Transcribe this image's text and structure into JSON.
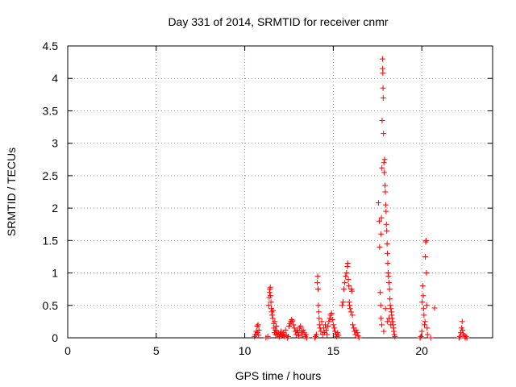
{
  "chart_data": {
    "type": "scatter",
    "title": "Day 331 of 2014, SRMTID for receiver cnmr",
    "xlabel": "GPS time / hours",
    "ylabel": "SRMTID / TECUs",
    "xlim": [
      0,
      24
    ],
    "ylim": [
      0,
      4.5
    ],
    "x_ticks": [
      0,
      5,
      10,
      15,
      20
    ],
    "x_tick_labels": [
      "0",
      "5",
      "10",
      "15",
      "20"
    ],
    "y_ticks": [
      0,
      0.5,
      1,
      1.5,
      2,
      2.5,
      3,
      3.5,
      4,
      4.5
    ],
    "y_tick_labels": [
      "0",
      "0.5",
      "1",
      "1.5",
      "2",
      "2.5",
      "3",
      "3.5",
      "4",
      "4.5"
    ],
    "grid": true,
    "marker": "+",
    "color": "#ff0000",
    "series": [
      {
        "name": "SRMTID",
        "points": [
          [
            10.55,
            0.02
          ],
          [
            10.6,
            0.05
          ],
          [
            10.65,
            0.1
          ],
          [
            10.7,
            0.18
          ],
          [
            10.72,
            0.08
          ],
          [
            10.75,
            0.2
          ],
          [
            10.78,
            0.04
          ],
          [
            10.8,
            0.12
          ],
          [
            11.2,
            0.0
          ],
          [
            11.3,
            0.02
          ],
          [
            11.35,
            0.5
          ],
          [
            11.38,
            0.62
          ],
          [
            11.4,
            0.7
          ],
          [
            11.42,
            0.75
          ],
          [
            11.44,
            0.78
          ],
          [
            11.46,
            0.65
          ],
          [
            11.48,
            0.55
          ],
          [
            11.5,
            0.45
          ],
          [
            11.52,
            0.4
          ],
          [
            11.55,
            0.35
          ],
          [
            11.58,
            0.3
          ],
          [
            11.6,
            0.42
          ],
          [
            11.62,
            0.22
          ],
          [
            11.65,
            0.15
          ],
          [
            11.68,
            0.08
          ],
          [
            11.7,
            0.25
          ],
          [
            11.72,
            0.12
          ],
          [
            11.75,
            0.05
          ],
          [
            11.78,
            0.18
          ],
          [
            11.8,
            0.1
          ],
          [
            11.85,
            0.04
          ],
          [
            11.9,
            0.08
          ],
          [
            11.95,
            0.02
          ],
          [
            12.0,
            0.06
          ],
          [
            12.05,
            0.1
          ],
          [
            12.1,
            0.03
          ],
          [
            12.15,
            0.05
          ],
          [
            12.2,
            0.08
          ],
          [
            12.25,
            0.02
          ],
          [
            12.3,
            0.12
          ],
          [
            12.35,
            0.04
          ],
          [
            12.4,
            0.0
          ],
          [
            12.45,
            0.02
          ],
          [
            12.5,
            0.18
          ],
          [
            12.55,
            0.22
          ],
          [
            12.6,
            0.25
          ],
          [
            12.65,
            0.28
          ],
          [
            12.7,
            0.26
          ],
          [
            12.75,
            0.2
          ],
          [
            12.8,
            0.15
          ],
          [
            12.85,
            0.1
          ],
          [
            12.9,
            0.05
          ],
          [
            12.95,
            0.12
          ],
          [
            13.0,
            0.08
          ],
          [
            13.05,
            0.03
          ],
          [
            13.1,
            0.15
          ],
          [
            13.15,
            0.18
          ],
          [
            13.2,
            0.1
          ],
          [
            13.25,
            0.05
          ],
          [
            13.3,
            0.12
          ],
          [
            13.35,
            0.08
          ],
          [
            13.4,
            0.02
          ],
          [
            13.45,
            0.05
          ],
          [
            13.5,
            0.0
          ],
          [
            13.95,
            0.0
          ],
          [
            14.0,
            0.02
          ],
          [
            14.05,
            0.05
          ],
          [
            14.1,
            0.85
          ],
          [
            14.12,
            0.95
          ],
          [
            14.14,
            0.75
          ],
          [
            14.16,
            0.5
          ],
          [
            14.18,
            0.4
          ],
          [
            14.2,
            0.3
          ],
          [
            14.22,
            0.2
          ],
          [
            14.25,
            0.15
          ],
          [
            14.3,
            0.1
          ],
          [
            14.35,
            0.25
          ],
          [
            14.4,
            0.05
          ],
          [
            14.45,
            0.15
          ],
          [
            14.5,
            0.08
          ],
          [
            14.55,
            0.2
          ],
          [
            14.6,
            0.12
          ],
          [
            14.65,
            0.05
          ],
          [
            14.7,
            0.18
          ],
          [
            14.75,
            0.25
          ],
          [
            14.8,
            0.3
          ],
          [
            14.85,
            0.35
          ],
          [
            14.9,
            0.38
          ],
          [
            14.95,
            0.28
          ],
          [
            15.0,
            0.2
          ],
          [
            15.05,
            0.15
          ],
          [
            15.1,
            0.1
          ],
          [
            15.15,
            0.05
          ],
          [
            15.2,
            0.02
          ],
          [
            15.25,
            0.08
          ],
          [
            15.3,
            0.04
          ],
          [
            15.5,
            0.5
          ],
          [
            15.55,
            0.55
          ],
          [
            15.6,
            0.75
          ],
          [
            15.65,
            0.85
          ],
          [
            15.7,
            0.95
          ],
          [
            15.75,
            1.0
          ],
          [
            15.8,
            1.1
          ],
          [
            15.82,
            1.15
          ],
          [
            15.85,
            0.9
          ],
          [
            15.88,
            0.8
          ],
          [
            15.9,
            0.55
          ],
          [
            15.92,
            0.5
          ],
          [
            15.95,
            0.45
          ],
          [
            16.0,
            0.4
          ],
          [
            16.02,
            0.75
          ],
          [
            16.05,
            0.72
          ],
          [
            16.08,
            0.35
          ],
          [
            16.1,
            0.2
          ],
          [
            16.15,
            0.15
          ],
          [
            16.2,
            0.1
          ],
          [
            16.25,
            0.05
          ],
          [
            16.3,
            0.12
          ],
          [
            16.35,
            0.08
          ],
          [
            16.4,
            0.03
          ],
          [
            16.45,
            0.0
          ],
          [
            17.55,
            2.08
          ],
          [
            17.6,
            1.8
          ],
          [
            17.62,
            1.4
          ],
          [
            17.65,
            0.7
          ],
          [
            17.68,
            0.5
          ],
          [
            17.7,
            1.6
          ],
          [
            17.72,
            1.85
          ],
          [
            17.75,
            2.62
          ],
          [
            17.76,
            3.35
          ],
          [
            17.78,
            4.3
          ],
          [
            17.79,
            4.15
          ],
          [
            17.8,
            4.08
          ],
          [
            17.81,
            3.85
          ],
          [
            17.82,
            3.7
          ],
          [
            17.84,
            3.15
          ],
          [
            17.86,
            2.7
          ],
          [
            17.88,
            2.55
          ],
          [
            17.9,
            2.75
          ],
          [
            17.92,
            2.35
          ],
          [
            17.94,
            2.25
          ],
          [
            17.96,
            2.05
          ],
          [
            17.98,
            1.95
          ],
          [
            18.0,
            1.75
          ],
          [
            18.02,
            1.65
          ],
          [
            18.04,
            1.45
          ],
          [
            18.06,
            1.3
          ],
          [
            18.08,
            1.15
          ],
          [
            18.1,
            1.0
          ],
          [
            18.12,
            0.95
          ],
          [
            18.15,
            0.85
          ],
          [
            18.18,
            0.75
          ],
          [
            18.2,
            0.6
          ],
          [
            18.22,
            0.5
          ],
          [
            18.25,
            0.45
          ],
          [
            18.28,
            0.4
          ],
          [
            18.3,
            0.35
          ],
          [
            18.32,
            0.3
          ],
          [
            18.35,
            0.25
          ],
          [
            18.38,
            0.2
          ],
          [
            18.4,
            0.15
          ],
          [
            18.42,
            0.1
          ],
          [
            18.45,
            0.05
          ],
          [
            18.48,
            0.02
          ],
          [
            17.7,
            0.3
          ],
          [
            17.74,
            0.2
          ],
          [
            17.85,
            0.1
          ],
          [
            17.95,
            0.45
          ],
          [
            18.05,
            0.25
          ],
          [
            18.15,
            0.3
          ],
          [
            18.25,
            0.2
          ],
          [
            19.9,
            0.0
          ],
          [
            19.95,
            0.02
          ],
          [
            20.0,
            0.1
          ],
          [
            20.02,
            0.55
          ],
          [
            20.05,
            0.8
          ],
          [
            20.08,
            0.65
          ],
          [
            20.1,
            0.45
          ],
          [
            20.12,
            0.35
          ],
          [
            20.15,
            0.2
          ],
          [
            20.18,
            0.25
          ],
          [
            20.2,
            1.25
          ],
          [
            20.22,
            1.48
          ],
          [
            20.24,
            1.5
          ],
          [
            20.26,
            1.0
          ],
          [
            20.28,
            0.5
          ],
          [
            20.3,
            0.15
          ],
          [
            20.32,
            0.05
          ],
          [
            20.5,
            0.0
          ],
          [
            20.72,
            0.46
          ],
          [
            22.1,
            0.0
          ],
          [
            22.15,
            0.02
          ],
          [
            22.2,
            0.08
          ],
          [
            22.25,
            0.15
          ],
          [
            22.28,
            0.25
          ],
          [
            22.3,
            0.12
          ],
          [
            22.35,
            0.06
          ],
          [
            22.4,
            0.03
          ],
          [
            22.45,
            0.0
          ],
          [
            22.5,
            0.02
          ],
          [
            22.55,
            0.0
          ]
        ]
      }
    ]
  }
}
